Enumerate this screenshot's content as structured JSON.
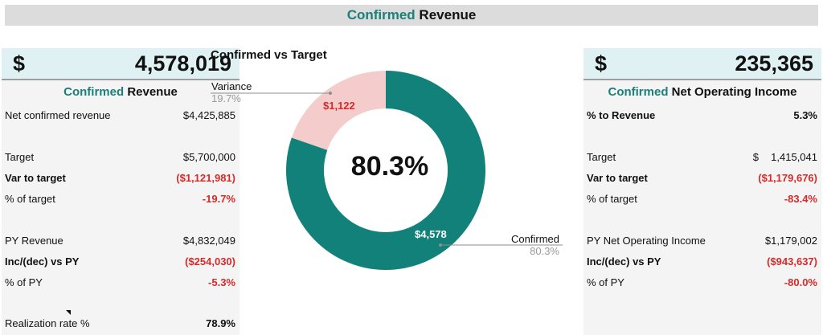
{
  "header": {
    "title_accent": "Confirmed",
    "title_rest": "Revenue"
  },
  "left": {
    "currency": "$",
    "big_value": "4,578,019",
    "subtitle_accent": "Confirmed",
    "subtitle_rest": "Revenue",
    "rows": [
      {
        "label": "Net confirmed revenue",
        "value": "$4,425,885"
      },
      {
        "label": "Target",
        "value": "$5,700,000"
      },
      {
        "label": "Var to target",
        "value": "($1,121,981)"
      },
      {
        "label": "% of target",
        "value": "-19.7%"
      },
      {
        "label": "PY Revenue",
        "value": "$4,832,049"
      },
      {
        "label": "Inc/(dec) vs PY",
        "value": "($254,030)"
      },
      {
        "label": "% of PY",
        "value": "-5.3%"
      },
      {
        "label": "Realization rate %",
        "value": "78.9%"
      }
    ]
  },
  "right": {
    "currency": "$",
    "big_value": "235,365",
    "subtitle_accent": "Confirmed",
    "subtitle_rest": "Net Operating Income",
    "rows": [
      {
        "label": "% to Revenue",
        "value": "5.3%"
      },
      {
        "label": "Target",
        "currency": "$",
        "value": "1,415,041"
      },
      {
        "label": "Var to target",
        "value": "($1,179,676)"
      },
      {
        "label": "% of target",
        "value": "-83.4%"
      },
      {
        "label": "PY Net Operating Income",
        "value": "$1,179,002"
      },
      {
        "label": "Inc/(dec) vs PY",
        "value": "($943,637)"
      },
      {
        "label": "% of PY",
        "value": "-80.0%"
      }
    ]
  },
  "chart_data": {
    "type": "pie",
    "title": "Confirmed vs Target",
    "center_label": "80.3%",
    "slices": [
      {
        "name": "Confirmed",
        "value": 4578,
        "label": "$4,578",
        "percent": "80.3%",
        "color": "#128179"
      },
      {
        "name": "Variance",
        "value": 1122,
        "label": "$1,122",
        "percent": "19.7%",
        "color": "#f5cccc"
      }
    ]
  },
  "colors": {
    "accent": "#1a8079",
    "negative": "#d62b2b",
    "header_bg": "#dcdcdc",
    "kpi_bg": "#dff1f3"
  }
}
